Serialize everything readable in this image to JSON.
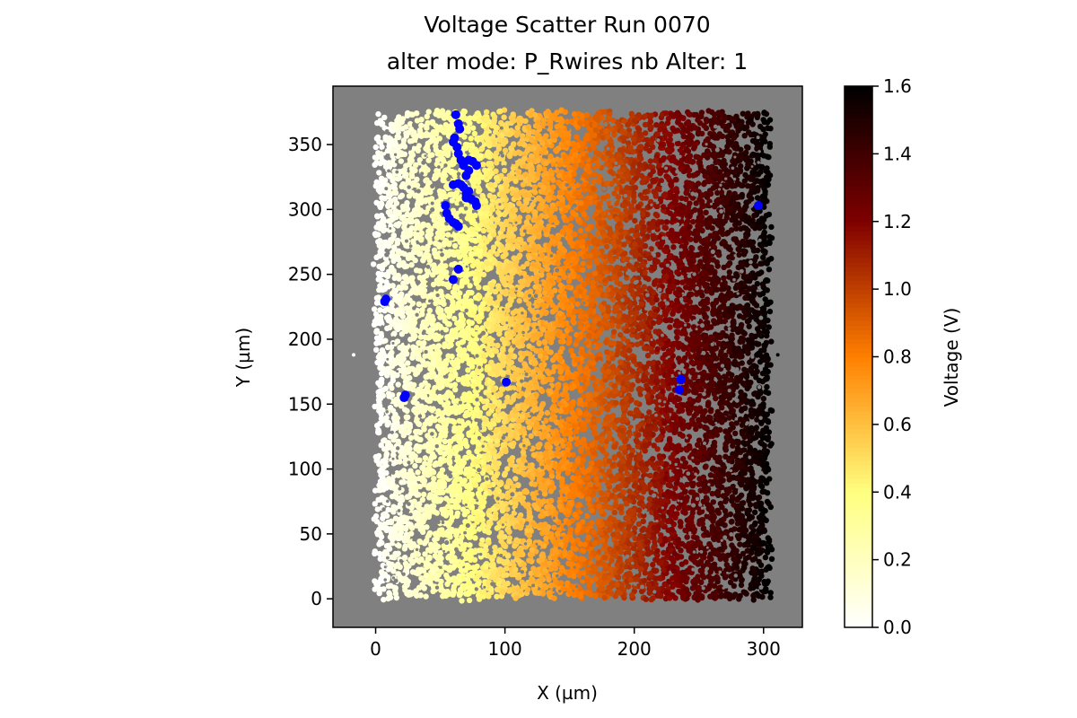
{
  "chart_data": {
    "type": "scatter",
    "title": "Voltage Scatter Run 0070",
    "subtitle": "alter mode: P_Rwires nb Alter: 1",
    "xlabel": "X (µm)",
    "ylabel": "Y (µm)",
    "xlim": [
      -33,
      330
    ],
    "ylim": [
      -22,
      395
    ],
    "x_ticks": [
      0,
      100,
      200,
      300
    ],
    "y_ticks": [
      0,
      50,
      100,
      150,
      200,
      250,
      300,
      350
    ],
    "background_color": "#808080",
    "grid": false,
    "colorbar": {
      "label": "Voltage (V)",
      "colormap": "afmhot_r",
      "range": [
        0,
        1.6
      ],
      "ticks": [
        "0.0",
        "0.2",
        "0.4",
        "0.6",
        "0.8",
        "1.0",
        "1.2",
        "1.4",
        "1.6"
      ]
    },
    "voltage_field": {
      "x_range": [
        0,
        305
      ],
      "y_range": [
        0,
        375
      ],
      "v_at_x_min": 0.0,
      "v_at_x_max": 1.6,
      "gradient_axis": "x",
      "point_color_by": "Voltage (V)"
    },
    "isolated_points": [
      {
        "x": -17,
        "y": 188,
        "v": 0.0
      },
      {
        "x": 311,
        "y": 188,
        "v": 1.6
      }
    ],
    "series": [
      {
        "color": "#0000ff",
        "x": [
          62,
          64,
          65,
          61,
          60,
          63,
          64,
          66,
          68,
          72,
          75,
          78,
          72,
          70,
          64,
          68,
          70,
          72,
          66,
          60,
          70,
          74,
          77,
          78,
          54,
          55,
          57,
          60,
          62,
          64,
          64,
          60,
          7,
          8,
          23,
          22,
          101,
          236,
          235,
          296
        ],
        "y": [
          373,
          366,
          362,
          355,
          352,
          348,
          343,
          338,
          334,
          338,
          337,
          334,
          330,
          326,
          320,
          317,
          312,
          314,
          319,
          319,
          309,
          308,
          306,
          303,
          303,
          297,
          293,
          290,
          289,
          287,
          254,
          246,
          229,
          231,
          157,
          155,
          167,
          169,
          161,
          303
        ]
      }
    ]
  }
}
